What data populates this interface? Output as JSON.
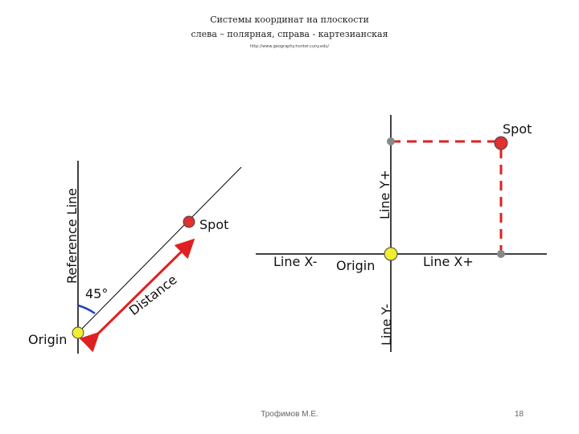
{
  "header": {
    "line1": "Системы координат на плоскости",
    "line2": "слева – полярная, справа - картезианская",
    "source": "http://www.geography.hunter.cuny.edu/"
  },
  "polar": {
    "reference_label": "Reference Line",
    "angle_label": "45°",
    "distance_label": "Distance",
    "spot_label": "Spot",
    "origin_label": "Origin"
  },
  "cartesian": {
    "spot_label": "Spot",
    "origin_label": "Origin",
    "x_neg_label": "Line X-",
    "x_pos_label": "Line X+",
    "y_pos_label": "Line Y+",
    "y_neg_label": "Line Y-"
  },
  "footer": {
    "author": "Трофимов М.Е.",
    "page": "18"
  },
  "colors": {
    "spot": "#e03030",
    "origin": "#f0ee30",
    "arrow": "#e02020",
    "dashed": "#e02020",
    "angle_arc": "#2040c0",
    "marker_gray": "#888888"
  }
}
